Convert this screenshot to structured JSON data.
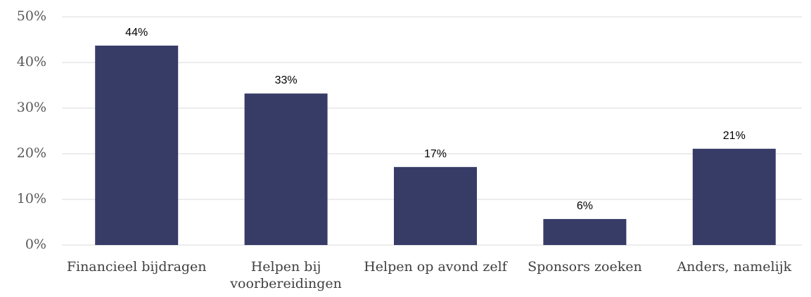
{
  "chart_data": {
    "type": "bar",
    "categories": [
      "Financieel bijdragen",
      "Helpen bij voorbereidingen",
      "Helpen op avond zelf",
      "Sponsors zoeken",
      "Anders, namelijk"
    ],
    "values": [
      43.7,
      33.2,
      17.1,
      5.7,
      21.1
    ],
    "value_labels": [
      "44%",
      "33%",
      "17%",
      "6%",
      "21%"
    ],
    "color": "#373c67",
    "ylim": [
      0,
      50
    ],
    "yticks": [
      {
        "value": 0,
        "label": "0%"
      },
      {
        "value": 10,
        "label": "10%"
      },
      {
        "value": 20,
        "label": "20%"
      },
      {
        "value": 30,
        "label": "30%"
      },
      {
        "value": 40,
        "label": "40%"
      },
      {
        "value": 50,
        "label": "50%"
      }
    ],
    "grid": true
  }
}
